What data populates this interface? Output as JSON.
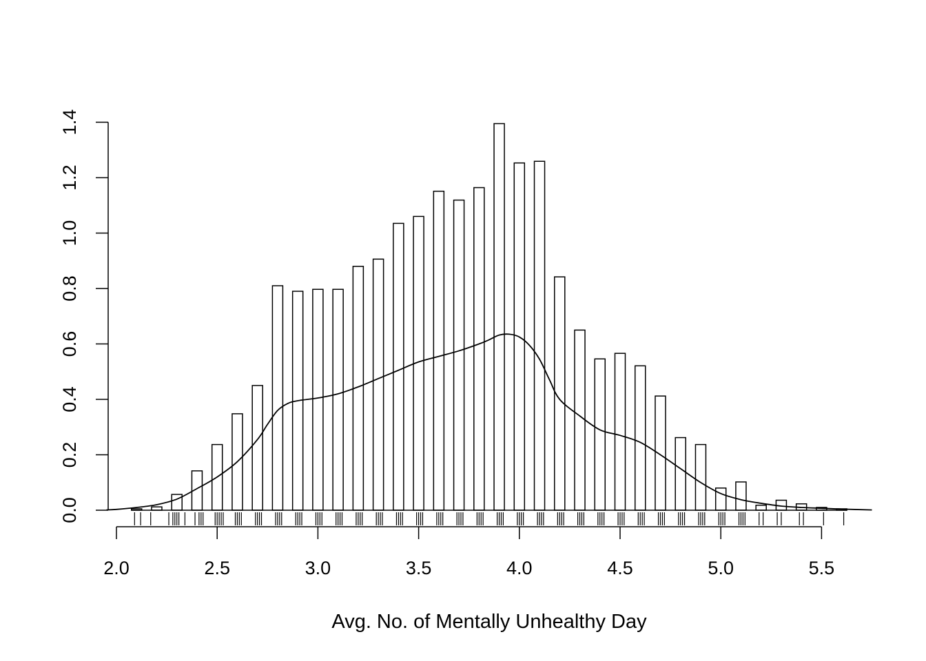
{
  "chart_data": {
    "type": "bar",
    "title": "",
    "xlabel": "Avg. No. of Mentally Unhealthy Day",
    "ylabel": "",
    "xlim": [
      2.0,
      5.75
    ],
    "ylim": [
      0,
      1.4
    ],
    "x_ticks": [
      "2.0",
      "2.5",
      "3.0",
      "3.5",
      "4.0",
      "4.5",
      "5.0",
      "5.5"
    ],
    "y_ticks": [
      "0.0",
      "0.2",
      "0.4",
      "0.6",
      "0.8",
      "1.0",
      "1.2",
      "1.4"
    ],
    "grid": false,
    "legend": "none",
    "bars": {
      "x": [
        2.1,
        2.2,
        2.3,
        2.4,
        2.5,
        2.6,
        2.7,
        2.8,
        2.9,
        3.0,
        3.1,
        3.2,
        3.3,
        3.4,
        3.5,
        3.6,
        3.7,
        3.8,
        3.9,
        4.0,
        4.1,
        4.2,
        4.3,
        4.4,
        4.5,
        4.6,
        4.7,
        4.8,
        4.9,
        5.0,
        5.1,
        5.2,
        5.3,
        5.4,
        5.5,
        5.6
      ],
      "values": [
        0.005,
        0.012,
        0.057,
        0.142,
        0.237,
        0.348,
        0.45,
        0.81,
        0.79,
        0.797,
        0.797,
        0.88,
        0.906,
        1.035,
        1.06,
        1.151,
        1.119,
        1.164,
        1.395,
        1.253,
        1.259,
        0.842,
        0.65,
        0.546,
        0.566,
        0.521,
        0.412,
        0.262,
        0.237,
        0.08,
        0.102,
        0.018,
        0.036,
        0.023,
        0.01,
        0.005
      ]
    },
    "density": {
      "x": [
        1.95,
        2.0,
        2.1,
        2.2,
        2.3,
        2.4,
        2.5,
        2.6,
        2.7,
        2.75,
        2.8,
        2.85,
        2.9,
        3.0,
        3.1,
        3.2,
        3.3,
        3.4,
        3.5,
        3.6,
        3.7,
        3.8,
        3.85,
        3.9,
        3.95,
        4.0,
        4.05,
        4.1,
        4.15,
        4.2,
        4.3,
        4.4,
        4.5,
        4.6,
        4.7,
        4.8,
        4.9,
        5.0,
        5.1,
        5.2,
        5.3,
        5.4,
        5.5,
        5.6,
        5.75
      ],
      "y": [
        0.001,
        0.003,
        0.01,
        0.02,
        0.04,
        0.078,
        0.12,
        0.175,
        0.255,
        0.31,
        0.36,
        0.385,
        0.395,
        0.405,
        0.42,
        0.445,
        0.475,
        0.505,
        0.535,
        0.555,
        0.575,
        0.6,
        0.615,
        0.632,
        0.635,
        0.625,
        0.595,
        0.545,
        0.47,
        0.4,
        0.34,
        0.29,
        0.27,
        0.245,
        0.2,
        0.15,
        0.1,
        0.06,
        0.038,
        0.025,
        0.015,
        0.01,
        0.007,
        0.004,
        0.001
      ]
    },
    "rug": [
      2.09,
      2.12,
      2.17,
      2.26,
      2.28,
      2.29,
      2.3,
      2.31,
      2.34,
      2.39,
      2.41,
      2.42,
      2.43,
      2.49,
      2.5,
      2.51,
      2.52,
      2.53,
      2.59,
      2.6,
      2.61,
      2.62,
      2.69,
      2.7,
      2.71,
      2.72,
      2.79,
      2.8,
      2.81,
      2.82,
      2.89,
      2.9,
      2.91,
      2.92,
      2.99,
      3.0,
      3.01,
      3.02,
      3.09,
      3.1,
      3.11,
      3.12,
      3.19,
      3.2,
      3.21,
      3.22,
      3.29,
      3.3,
      3.31,
      3.32,
      3.39,
      3.4,
      3.41,
      3.42,
      3.49,
      3.5,
      3.51,
      3.52,
      3.59,
      3.6,
      3.61,
      3.62,
      3.69,
      3.7,
      3.71,
      3.72,
      3.79,
      3.8,
      3.81,
      3.82,
      3.89,
      3.9,
      3.91,
      3.92,
      3.99,
      4.0,
      4.01,
      4.02,
      4.09,
      4.1,
      4.11,
      4.12,
      4.19,
      4.2,
      4.21,
      4.22,
      4.29,
      4.3,
      4.31,
      4.32,
      4.39,
      4.4,
      4.41,
      4.42,
      4.49,
      4.5,
      4.51,
      4.52,
      4.59,
      4.6,
      4.61,
      4.62,
      4.69,
      4.7,
      4.71,
      4.72,
      4.79,
      4.8,
      4.81,
      4.82,
      4.89,
      4.9,
      4.91,
      4.92,
      4.99,
      5.0,
      5.01,
      5.02,
      5.09,
      5.1,
      5.11,
      5.12,
      5.19,
      5.21,
      5.28,
      5.3,
      5.39,
      5.41,
      5.51,
      5.61
    ]
  }
}
